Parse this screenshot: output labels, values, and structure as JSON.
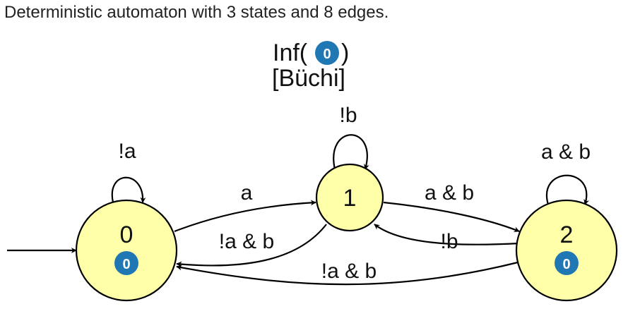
{
  "caption": "Deterministic automaton with 3 states and 8 edges.",
  "acceptance": {
    "formula_prefix": "Inf(",
    "set_label": "0",
    "formula_suffix": ")",
    "name": "[Büchi]"
  },
  "states": [
    {
      "id": "0",
      "label": "0",
      "acc_mark": "0",
      "initial": true
    },
    {
      "id": "1",
      "label": "1",
      "acc_mark": null,
      "initial": false
    },
    {
      "id": "2",
      "label": "2",
      "acc_mark": "0",
      "initial": false
    }
  ],
  "edges": [
    {
      "from": "0",
      "to": "0",
      "label": "!a"
    },
    {
      "from": "0",
      "to": "1",
      "label": "a"
    },
    {
      "from": "1",
      "to": "0",
      "label": "!a & b"
    },
    {
      "from": "1",
      "to": "1",
      "label": "!b"
    },
    {
      "from": "1",
      "to": "2",
      "label": "a & b"
    },
    {
      "from": "2",
      "to": "1",
      "label": "!b"
    },
    {
      "from": "2",
      "to": "2",
      "label": "a & b"
    },
    {
      "from": "2",
      "to": "0",
      "label": "!a & b"
    }
  ],
  "colors": {
    "state_fill": "#ffffaa",
    "state_stroke": "#000000",
    "acc_mark_fill": "#1f78b4",
    "acc_mark_text": "#ffffff",
    "edge": "#000000"
  }
}
